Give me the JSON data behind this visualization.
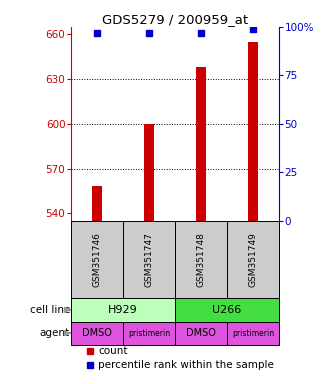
{
  "title": "GDS5279 / 200959_at",
  "samples": [
    "GSM351746",
    "GSM351747",
    "GSM351748",
    "GSM351749"
  ],
  "bar_values": [
    558,
    600,
    638,
    655
  ],
  "percentile_values": [
    97,
    97,
    97,
    99
  ],
  "ylim_left": [
    535,
    665
  ],
  "ylim_right": [
    0,
    100
  ],
  "yticks_left": [
    540,
    570,
    600,
    630,
    660
  ],
  "yticks_right": [
    0,
    25,
    50,
    75,
    100
  ],
  "ytick_labels_right": [
    "0",
    "25",
    "50",
    "75",
    "100%"
  ],
  "bar_color": "#cc0000",
  "percentile_color": "#0000cc",
  "cell_line_labels": [
    "H929",
    "U266"
  ],
  "cell_line_colors": [
    "#bbffbb",
    "#44dd44"
  ],
  "cell_line_spans": [
    [
      0,
      2
    ],
    [
      2,
      4
    ]
  ],
  "agent_labels": [
    "DMSO",
    "pristimerin",
    "DMSO",
    "pristimerin"
  ],
  "agent_color": "#dd55dd",
  "gsm_bg_color": "#cccccc",
  "legend_count_color": "#cc0000",
  "legend_percentile_color": "#0000cc",
  "grid_yticks": [
    570,
    600,
    630
  ],
  "bar_width": 0.18,
  "x_positions": [
    0,
    1,
    2,
    3
  ],
  "n_bars": 4,
  "xlim": [
    -0.5,
    3.5
  ]
}
